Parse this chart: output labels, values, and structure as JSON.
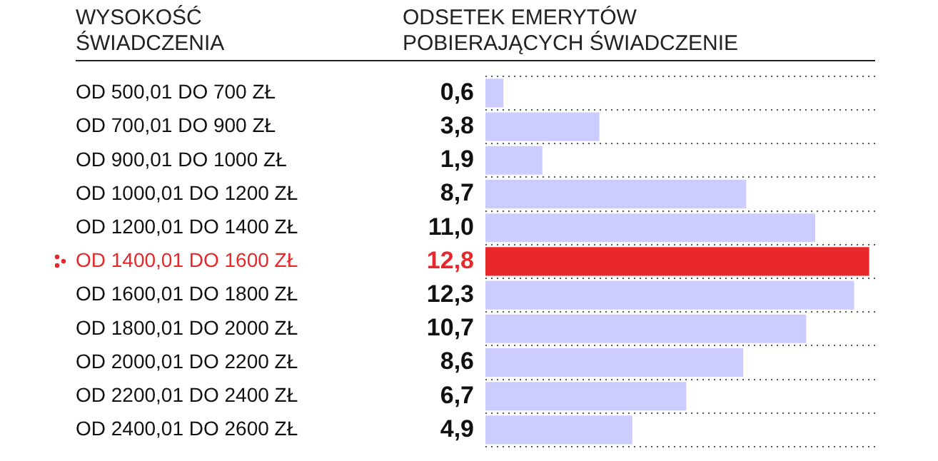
{
  "chart_data": {
    "type": "bar",
    "orientation": "horizontal",
    "ylabel": "WYSOKOŚĆ\nŚWIADCZENIA",
    "xlabel": "ODSETEK EMERYTÓW\nPOBIERAJĄCYCH ŚWIADCZENIE",
    "categories": [
      "OD 500,01 DO 700 ZŁ",
      "OD 700,01 DO 900 ZŁ",
      "OD 900,01 DO 1000 ZŁ",
      "OD 1000,01 DO 1200 ZŁ",
      "OD 1200,01 DO 1400 ZŁ",
      "OD 1400,01 DO 1600 ZŁ",
      "OD 1600,01 DO 1800 ZŁ",
      "OD 1800,01 DO 2000 ZŁ",
      "OD 2000,01 DO 2200 ZŁ",
      "OD 2200,01 DO 2400 ZŁ",
      "OD 2400,01 DO 2600 ZŁ"
    ],
    "values": [
      0.6,
      3.8,
      1.9,
      8.7,
      11.0,
      12.8,
      12.3,
      10.7,
      8.6,
      6.7,
      4.9
    ],
    "value_labels": [
      "0,6",
      "3,8",
      "1,9",
      "8,7",
      "11,0",
      "12,8",
      "12,3",
      "10,7",
      "8,6",
      "6,7",
      "4,9"
    ],
    "colors": [
      "#ccccff",
      "#ccccff",
      "#ccccff",
      "#ccccff",
      "#ccccff",
      "#e8272a",
      "#ccccff",
      "#ccccff",
      "#ccccff",
      "#ccccff",
      "#ccccff"
    ],
    "xlim": [
      0,
      13
    ],
    "grid": "y",
    "tick_labels": "y",
    "legend": false
  }
}
